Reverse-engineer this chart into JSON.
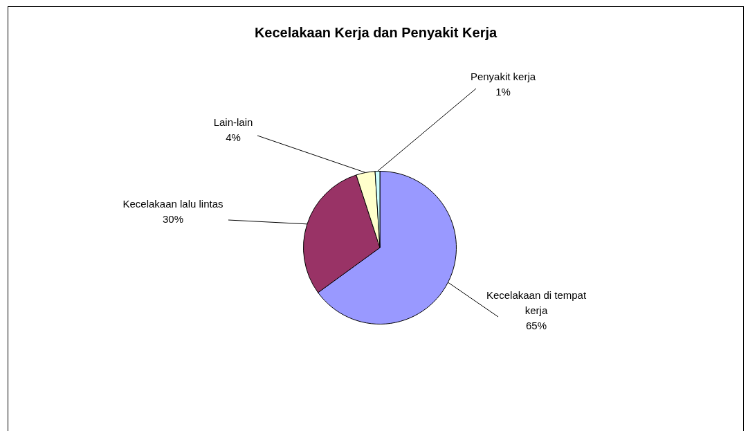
{
  "chart_data": {
    "type": "pie",
    "title": "Kecelakaan Kerja dan Penyakit Kerja",
    "categories": [
      "Kecelakaan di tempat kerja",
      "Kecelakaan lalu lintas",
      "Lain-lain",
      "Penyakit kerja"
    ],
    "values": [
      65,
      30,
      4,
      1
    ],
    "value_labels": [
      "65%",
      "30%",
      "4%",
      "1%"
    ],
    "colors": [
      "#9999ff",
      "#993366",
      "#ffffcc",
      "#ccffff"
    ],
    "legend": false
  }
}
